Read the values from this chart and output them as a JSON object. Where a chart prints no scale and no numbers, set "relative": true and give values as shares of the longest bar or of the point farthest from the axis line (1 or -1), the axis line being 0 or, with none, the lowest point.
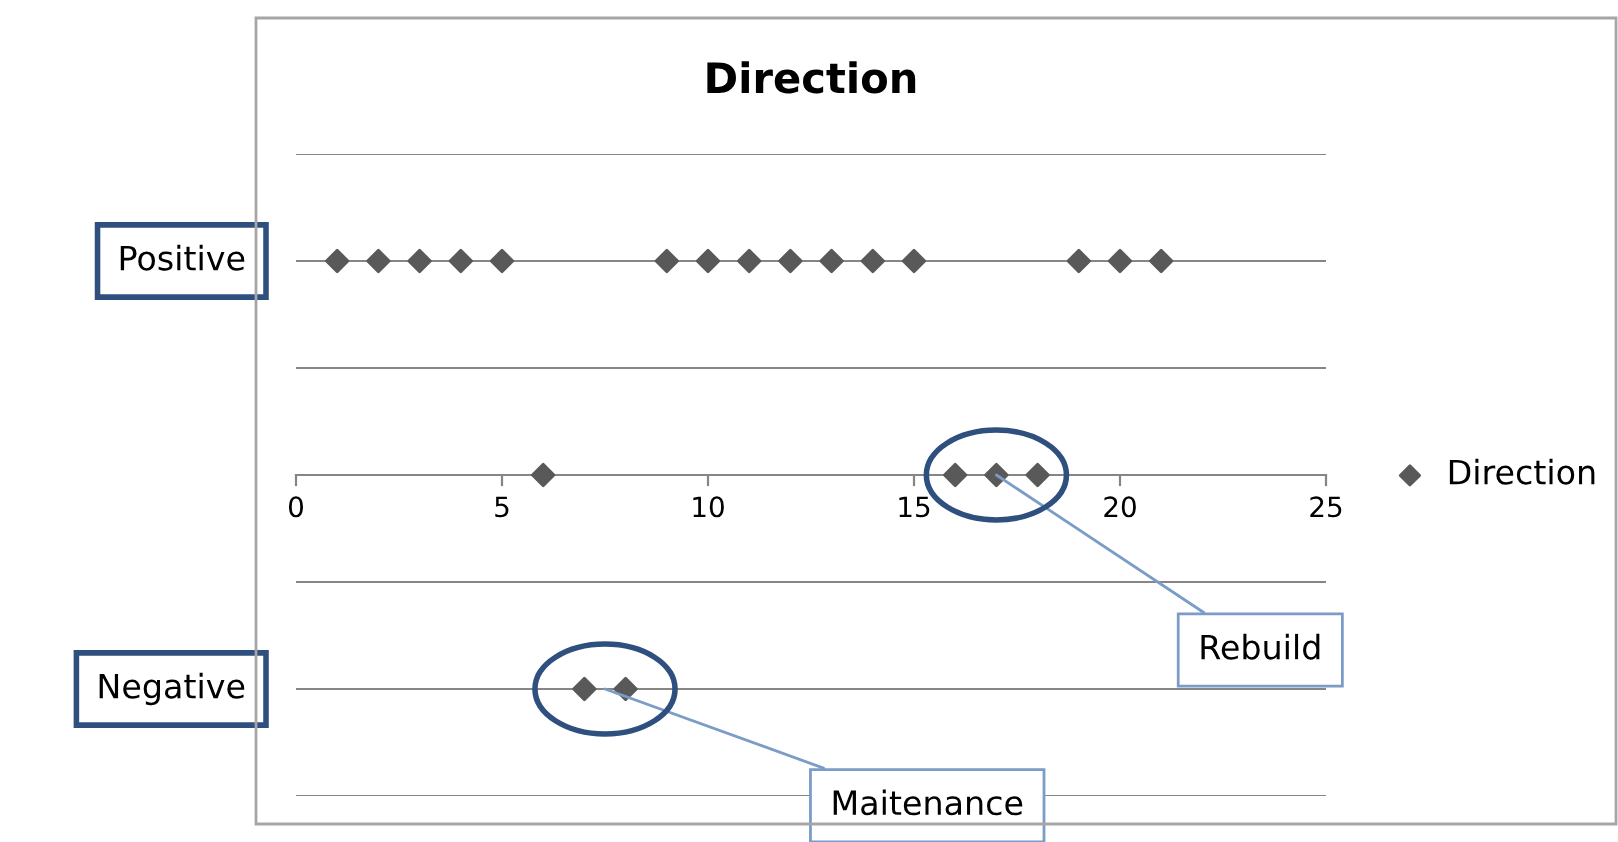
{
  "chart_data": {
    "type": "scatter",
    "title": "Direction",
    "relative": true,
    "series": [
      {
        "name": "Direction",
        "color": "#595959",
        "x": [
          1,
          2,
          3,
          4,
          5,
          9,
          10,
          11,
          12,
          13,
          14,
          15,
          19,
          20,
          21,
          6,
          16,
          17,
          18,
          7,
          8
        ],
        "values": [
          1,
          1,
          1,
          1,
          1,
          1,
          1,
          1,
          1,
          1,
          1,
          1,
          1,
          1,
          1,
          0,
          0,
          0,
          0,
          -1,
          -1
        ]
      }
    ],
    "xlim": [
      0,
      25
    ],
    "xticks": [
      0,
      5,
      10,
      15,
      20,
      25
    ],
    "annotations": [
      "Positive",
      "Negative",
      {
        "text": "Rebuild",
        "x": 17,
        "y": 0
      },
      {
        "text": "Maitenance",
        "x": 7.5,
        "y": -1
      }
    ],
    "grid": "y",
    "legend": "right",
    "marker": "diamond"
  }
}
